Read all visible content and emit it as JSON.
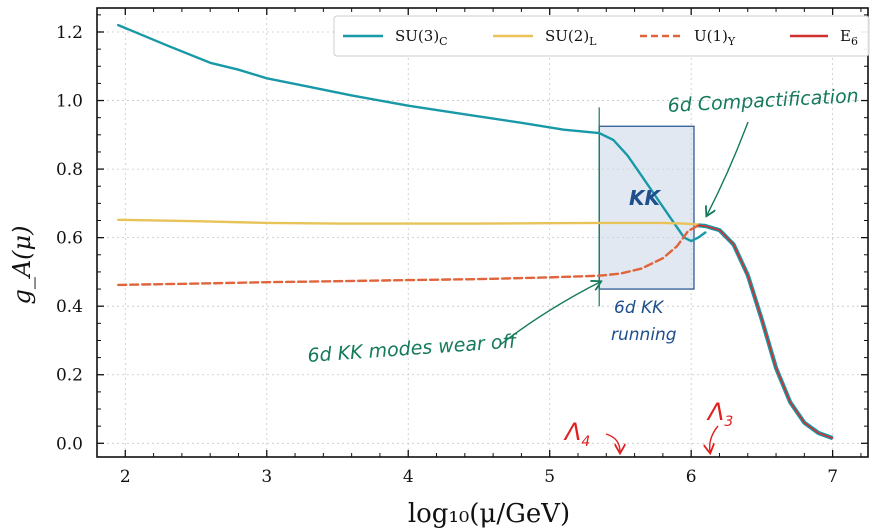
{
  "chart_data": {
    "type": "line",
    "xlabel": "log₁₀(μ/GeV)",
    "ylabel": "g_A(μ)",
    "xlim": [
      1.8,
      7.25
    ],
    "ylim": [
      -0.04,
      1.27
    ],
    "xticks": [
      2,
      3,
      4,
      5,
      6,
      7
    ],
    "xtick_labels": [
      "2",
      "3",
      "4",
      "5",
      "6",
      "7"
    ],
    "yticks": [
      0.0,
      0.2,
      0.4,
      0.6,
      0.8,
      1.0,
      1.2
    ],
    "ytick_labels": [
      "0.0",
      "0.2",
      "0.4",
      "0.6",
      "0.8",
      "1.0",
      "1.2"
    ],
    "grid": true,
    "legend_position": "top-right",
    "colors": {
      "su3": "#1999a8",
      "su2": "#e8c35a",
      "u1": "#e0643c",
      "e6": "#d03030",
      "kk_box": "#c9d6e8",
      "kk_edge": "#1f4f8c",
      "annotation_green": "#157a5c",
      "annotation_red": "#e02020"
    },
    "series": [
      {
        "name": "SU(3)",
        "sub": "C",
        "style": "solid",
        "color_key": "su3",
        "x": [
          1.95,
          2.3,
          2.6,
          2.8,
          3.0,
          3.3,
          3.6,
          4.0,
          4.4,
          4.8,
          5.1,
          5.35,
          5.45,
          5.55,
          5.65,
          5.75,
          5.85,
          5.95,
          6.0,
          6.05,
          6.1
        ],
        "y": [
          1.22,
          1.16,
          1.11,
          1.09,
          1.065,
          1.04,
          1.015,
          0.985,
          0.96,
          0.935,
          0.915,
          0.905,
          0.885,
          0.84,
          0.78,
          0.72,
          0.66,
          0.6,
          0.59,
          0.6,
          0.615
        ]
      },
      {
        "name": "SU(2)",
        "sub": "L",
        "style": "solid",
        "color_key": "su2",
        "x": [
          1.95,
          2.5,
          3.0,
          3.5,
          4.0,
          4.5,
          5.0,
          5.35,
          5.6,
          5.8,
          5.95,
          6.05
        ],
        "y": [
          0.652,
          0.648,
          0.643,
          0.641,
          0.641,
          0.641,
          0.642,
          0.643,
          0.643,
          0.643,
          0.641,
          0.638
        ]
      },
      {
        "name": "U(1)",
        "sub": "Y",
        "style": "dashed",
        "color_key": "u1",
        "x": [
          1.95,
          2.5,
          3.0,
          3.5,
          4.0,
          4.5,
          5.0,
          5.35,
          5.5,
          5.65,
          5.8,
          5.9,
          5.98,
          6.05
        ],
        "y": [
          0.462,
          0.466,
          0.47,
          0.473,
          0.476,
          0.479,
          0.484,
          0.489,
          0.495,
          0.51,
          0.54,
          0.575,
          0.62,
          0.635
        ]
      },
      {
        "name": "E",
        "sub": "6",
        "style": "solid",
        "color_key": "e6",
        "x": [
          6.05,
          6.1,
          6.2,
          6.3,
          6.4,
          6.5,
          6.6,
          6.7,
          6.8,
          6.9,
          7.0
        ],
        "y": [
          0.636,
          0.634,
          0.622,
          0.58,
          0.49,
          0.36,
          0.22,
          0.12,
          0.06,
          0.03,
          0.015
        ]
      }
    ],
    "kk_region": {
      "x": [
        5.35,
        6.02
      ],
      "y": [
        0.45,
        0.925
      ]
    },
    "annotations": {
      "kk_label": "KK",
      "compactification": "6d Compactification",
      "kk_running_1": "6d KK",
      "kk_running_2": "running",
      "modes_off": "6d KK modes wear off",
      "lambda4": "Λ",
      "lambda4_sub": "4",
      "lambda3": "Λ",
      "lambda3_sub": "3"
    }
  }
}
